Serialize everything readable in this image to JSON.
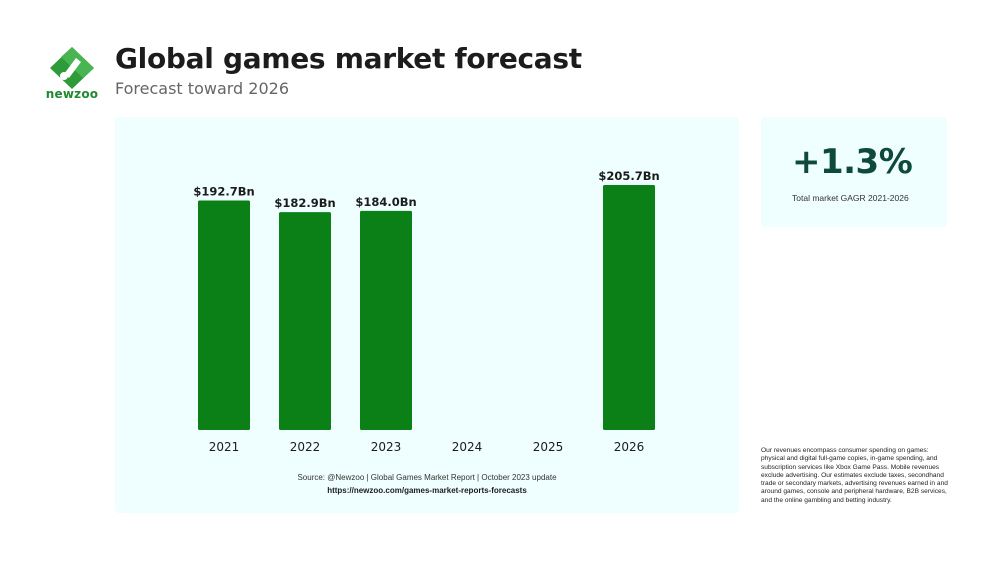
{
  "brand": {
    "logo_text": "newzoo",
    "logo_icon": "newzoo-logo-icon",
    "accent_color": "#1f8a2e"
  },
  "header": {
    "title": "Global games market forecast",
    "subtitle": "Forecast toward 2026"
  },
  "chart_data": {
    "type": "bar",
    "categories": [
      "2021",
      "2022",
      "2023",
      "2024",
      "2025",
      "2026"
    ],
    "values": [
      192.7,
      182.9,
      184.0,
      null,
      null,
      205.7
    ],
    "data_labels": [
      "$192.7Bn",
      "$182.9Bn",
      "$184.0Bn",
      "",
      "",
      "$205.7Bn"
    ],
    "ylim": [
      0,
      205.7
    ],
    "grid": false,
    "bar_color": "#0a8016"
  },
  "source": {
    "text": "Source: @Newzoo | Global Games Market Report | October 2023 update",
    "url": "https://newzoo.com/games-market-reports-forecasts"
  },
  "stat": {
    "value": "+1.3%",
    "label": "Total market GAGR 2021-2026"
  },
  "footnote": "Our revenues encompass consumer spending on games: physical and digital full-game copies, in-game spending, and subscription services like Xbox Game Pass. Mobile revenues exclude advertising. Our estimates exclude taxes, secondhand trade or secondary markets, advertising revenues earned in and around games, console and peripheral hardware, B2B services, and the online gambling and betting industry."
}
